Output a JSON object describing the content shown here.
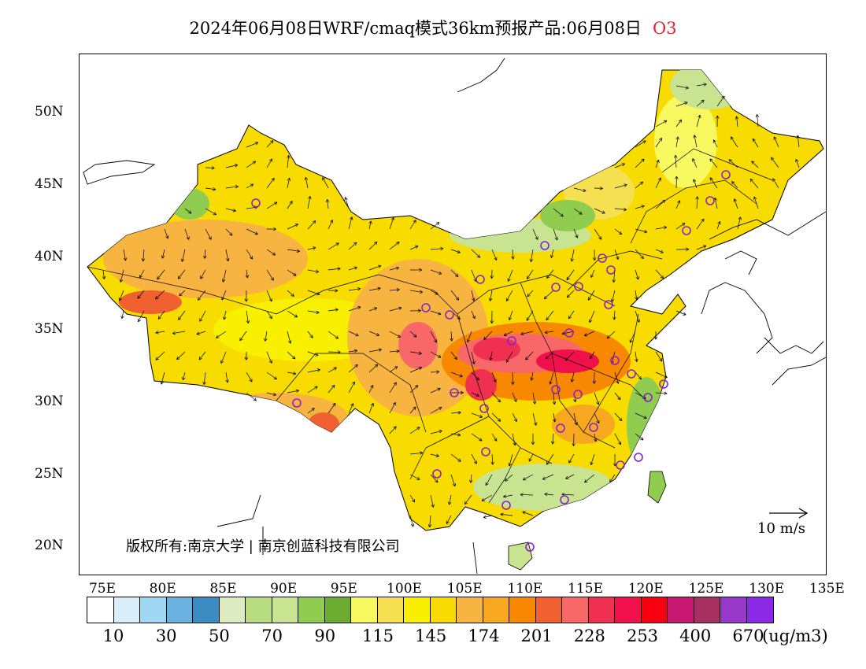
{
  "title": {
    "text": "2024年06月08日WRF/cmaq模式36km预报产品:06月08日",
    "species": "O3",
    "species_color": "#e8202a"
  },
  "map": {
    "lat_ticks": [
      "50N",
      "45N",
      "40N",
      "35N",
      "30N",
      "25N",
      "20N"
    ],
    "lon_ticks": [
      "75E",
      "80E",
      "85E",
      "90E",
      "95E",
      "100E",
      "105E",
      "110E",
      "115E",
      "120E",
      "125E",
      "130E",
      "135E"
    ],
    "copyright": "版权所有:南京大学 | 南京创蓝科技有限公司",
    "wind_scale_label": "10 m/s"
  },
  "colorbar": {
    "colors": [
      "#ffffff",
      "#d8effa",
      "#a0d8f4",
      "#6ab2e0",
      "#3c8cc4",
      "#dcecc0",
      "#b8dc80",
      "#c8e490",
      "#90cc50",
      "#6cac30",
      "#f8f860",
      "#f4e050",
      "#f8f000",
      "#f8dc00",
      "#f8b440",
      "#f8a820",
      "#f88800",
      "#f06030",
      "#f86868",
      "#f03050",
      "#f0104c",
      "#f80010",
      "#c81874",
      "#a83060",
      "#9838c8",
      "#8c28e8"
    ],
    "labels": [
      "10",
      "30",
      "50",
      "70",
      "90",
      "115",
      "145",
      "174",
      "201",
      "228",
      "253",
      "400",
      "670"
    ],
    "unit": "(ug/m3)"
  }
}
